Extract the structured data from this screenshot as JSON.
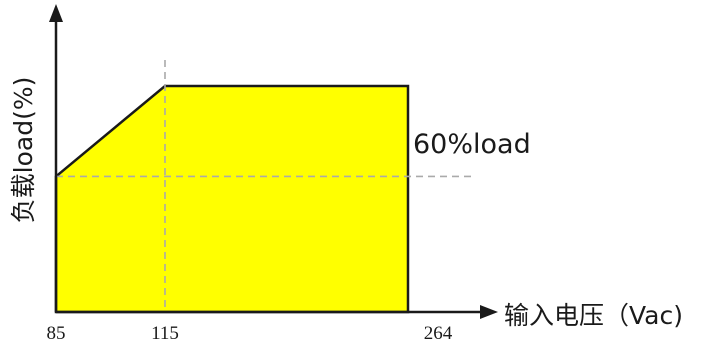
{
  "chart_data": {
    "type": "area",
    "title": "",
    "xlabel": "输入电压（Vac)",
    "ylabel": "负载load(%)",
    "x_ticks": [
      "85",
      "115",
      "264"
    ],
    "points": [
      {
        "x": 85,
        "y": 60
      },
      {
        "x": 115,
        "y": 100
      },
      {
        "x": 264,
        "y": 100
      },
      {
        "x": 264,
        "y": 0
      },
      {
        "x": 85,
        "y": 0
      }
    ],
    "reference_line": {
      "y": 60,
      "label": "60%load"
    },
    "reference_vline": {
      "x": 115
    },
    "fill_color": "#ffff00",
    "outline_color": "#1a1a1a",
    "dashed_color": "#aaaaaa",
    "grid": false
  }
}
